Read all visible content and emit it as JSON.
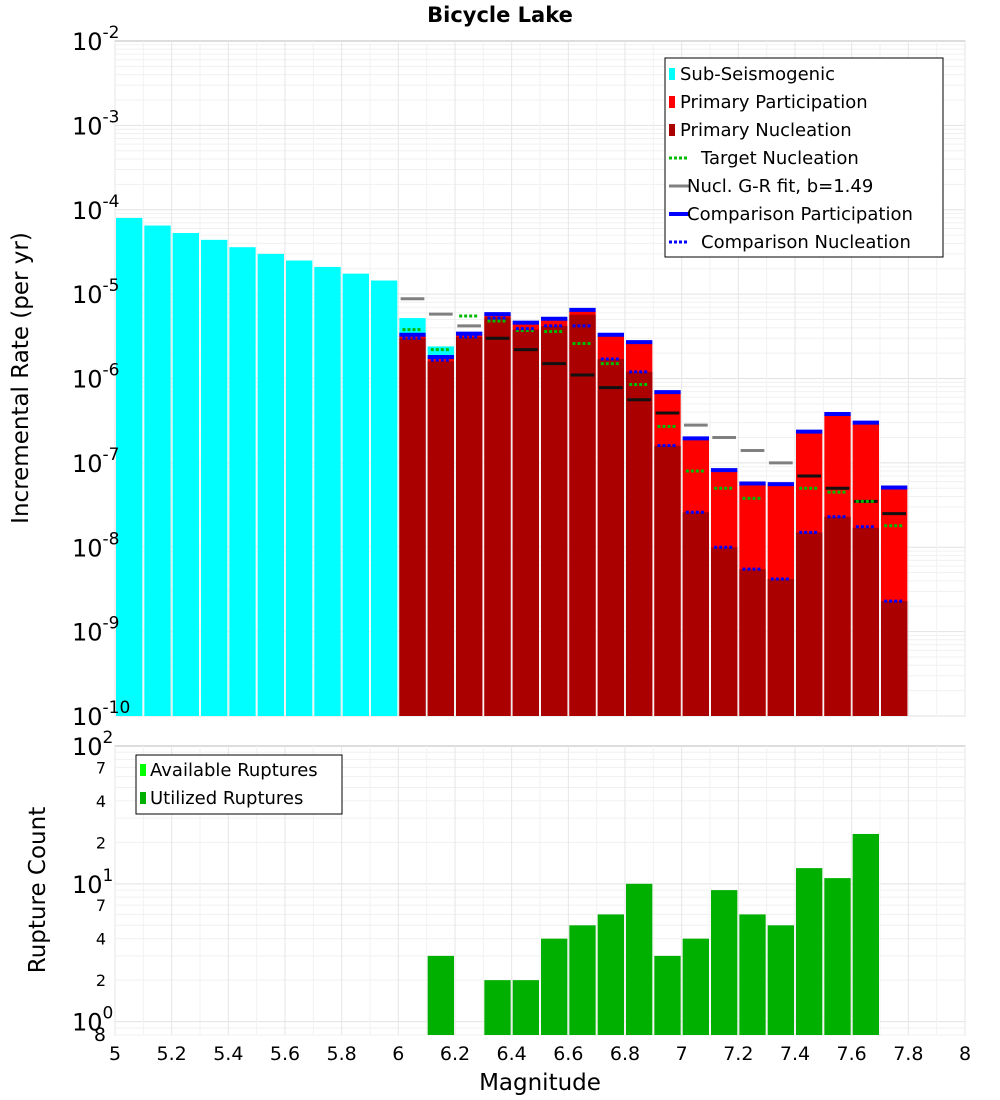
{
  "chart_data": [
    {
      "type": "bar",
      "title": "Bicycle Lake",
      "ylabel": "Incremental Rate (per yr)",
      "xlabel": "",
      "yscale": "log",
      "ylim": [
        1e-10,
        0.01
      ],
      "xlim": [
        5,
        8
      ],
      "grid": true,
      "legend_position": "top-right",
      "y_tick_labels": [
        {
          "base": "10",
          "exp": "-2"
        },
        {
          "base": "10",
          "exp": "-3"
        },
        {
          "base": "10",
          "exp": "-4"
        },
        {
          "base": "10",
          "exp": "-5"
        },
        {
          "base": "10",
          "exp": "-6"
        },
        {
          "base": "10",
          "exp": "-7"
        },
        {
          "base": "10",
          "exp": "-8"
        },
        {
          "base": "10",
          "exp": "-9"
        },
        {
          "base": "10",
          "exp": "-10"
        }
      ],
      "legend": [
        {
          "label": "Sub-Seismogenic",
          "color": "#00ffff",
          "style": "box"
        },
        {
          "label": "Primary Participation",
          "color": "#ff0000",
          "style": "box"
        },
        {
          "label": "Primary Nucleation",
          "color": "#aa0000",
          "style": "box"
        },
        {
          "label": "Target Nucleation",
          "color": "#00bb00",
          "style": "dotted"
        },
        {
          "label": "Nucl. G-R fit, b=1.49",
          "color": "#808080",
          "style": "line"
        },
        {
          "label": "Comparison Participation",
          "color": "#0000ff",
          "style": "thick"
        },
        {
          "label": "Comparison Nucleation",
          "color": "#0000ff",
          "style": "dotted"
        }
      ],
      "bin_width": 0.1,
      "sub_seismogenic": {
        "name": "Sub-Seismogenic",
        "x": [
          5.05,
          5.15,
          5.25,
          5.35,
          5.45,
          5.55,
          5.65,
          5.75,
          5.85,
          5.95,
          6.05,
          6.15
        ],
        "values": [
          8e-05,
          6.5e-05,
          5.3e-05,
          4.4e-05,
          3.6e-05,
          3e-05,
          2.5e-05,
          2.1e-05,
          1.75e-05,
          1.45e-05,
          5.2e-06,
          2.4e-06
        ]
      },
      "x": [
        6.05,
        6.15,
        6.25,
        6.35,
        6.45,
        6.55,
        6.65,
        6.75,
        6.85,
        6.95,
        7.05,
        7.15,
        7.25,
        7.35,
        7.45,
        7.55,
        7.65,
        7.75
      ],
      "series": [
        {
          "name": "Primary Participation",
          "values": [
            3.2e-06,
            1.75e-06,
            3.3e-06,
            5.7e-06,
            4.5e-06,
            5e-06,
            6.3e-06,
            3.2e-06,
            2.6e-06,
            6.7e-07,
            1.9e-07,
            8e-08,
            5.5e-08,
            5.5e-08,
            2.3e-07,
            3.7e-07,
            2.9e-07,
            5e-08
          ]
        },
        {
          "name": "Primary Nucleation",
          "values": [
            3e-06,
            1.6e-06,
            3.1e-06,
            5.3e-06,
            3.8e-06,
            4.2e-06,
            5.7e-06,
            1.7e-06,
            1.2e-06,
            1.6e-07,
            2.6e-08,
            1e-08,
            5.5e-09,
            4.2e-09,
            1.5e-08,
            2.3e-08,
            1.7e-08,
            2.3e-09
          ]
        },
        {
          "name": "Target Nucleation",
          "values": [
            3.8e-06,
            2.2e-06,
            5.5e-06,
            4.8e-06,
            3.7e-06,
            3.6e-06,
            2.6e-06,
            1.5e-06,
            8.5e-07,
            2.7e-07,
            8e-08,
            5e-08,
            3.8e-08,
            null,
            5e-08,
            4.5e-08,
            3.5e-08,
            1.8e-08
          ]
        },
        {
          "name": "Nucl. G-R fit, b=1.49",
          "values": [
            8.8e-06,
            5.8e-06,
            4.2e-06,
            3e-06,
            2.2e-06,
            1.5e-06,
            1.1e-06,
            7.8e-07,
            5.6e-07,
            3.9e-07,
            2.8e-07,
            2e-07,
            1.4e-07,
            1e-07,
            7e-08,
            5e-08,
            3.5e-08,
            2.5e-08
          ]
        },
        {
          "name": "Comparison Participation",
          "values": [
            3.3e-06,
            1.8e-06,
            3.4e-06,
            5.8e-06,
            4.6e-06,
            5.1e-06,
            6.5e-06,
            3.3e-06,
            2.7e-06,
            6.9e-07,
            1.95e-07,
            8.2e-08,
            5.7e-08,
            5.6e-08,
            2.35e-07,
            3.8e-07,
            3e-07,
            5.1e-08
          ]
        },
        {
          "name": "Comparison Nucleation",
          "values": [
            3e-06,
            1.65e-06,
            3.1e-06,
            5.2e-06,
            3.9e-06,
            4.2e-06,
            4.2e-06,
            1.7e-06,
            1.2e-06,
            1.6e-07,
            2.6e-08,
            1e-08,
            5.5e-09,
            4.2e-09,
            1.5e-08,
            2.3e-08,
            1.75e-08,
            2.3e-09
          ]
        }
      ]
    },
    {
      "type": "bar",
      "title": "",
      "xlabel": "Magnitude",
      "ylabel": "Rupture Count",
      "yscale": "log",
      "ylim": [
        0.8,
        100
      ],
      "xlim": [
        5,
        8
      ],
      "grid": true,
      "legend_position": "top-left",
      "x_tick_labels": [
        "5",
        "5.2",
        "5.4",
        "5.6",
        "5.8",
        "6",
        "6.2",
        "6.4",
        "6.6",
        "6.8",
        "7",
        "7.2",
        "7.4",
        "7.6",
        "7.8",
        "8"
      ],
      "y_tick_labels": [
        {
          "base": "10",
          "exp": "2"
        },
        {
          "base": "10",
          "exp": "1"
        },
        {
          "base": "10",
          "exp": "0"
        }
      ],
      "y_minor_tick_labels": [
        "7",
        "4",
        "2",
        "7",
        "4",
        "2",
        "8"
      ],
      "legend": [
        {
          "label": "Available Ruptures",
          "color": "#00ff00",
          "style": "box"
        },
        {
          "label": "Utilized Ruptures",
          "color": "#00b000",
          "style": "box"
        }
      ],
      "x": [
        6.15,
        6.25,
        6.35,
        6.45,
        6.55,
        6.65,
        6.75,
        6.85,
        6.95,
        7.05,
        7.15,
        7.25,
        7.35,
        7.45,
        7.55,
        7.65
      ],
      "series": [
        {
          "name": "Utilized Ruptures",
          "values": [
            3,
            0,
            2,
            2,
            4,
            5,
            6,
            10,
            3,
            4,
            9,
            6,
            5,
            13,
            11,
            23
          ]
        }
      ]
    }
  ]
}
